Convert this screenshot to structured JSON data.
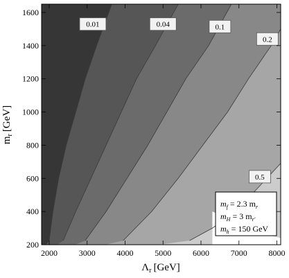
{
  "chart_data": {
    "type": "contour",
    "xlabel_main": "Λ",
    "xlabel_sub": "r",
    "xlabel_unit": "[GeV]",
    "ylabel_main": "m",
    "ylabel_sub": "r",
    "ylabel_unit": "[GeV]",
    "xlim": [
      1800,
      8100
    ],
    "ylim": [
      200,
      1650
    ],
    "xticks": [
      2000,
      3000,
      4000,
      5000,
      6000,
      7000,
      8000
    ],
    "yticks": [
      200,
      400,
      600,
      800,
      1000,
      1200,
      1400,
      1600
    ],
    "fill_colors": [
      "#363636",
      "#565656",
      "#6b6b6b",
      "#888888",
      "#a6a6a6",
      "#cccccc",
      "#ffffff"
    ],
    "contours": [
      {
        "level": "0.01",
        "label_at": [
          3150,
          1530
        ],
        "points": [
          [
            2000,
            225
          ],
          [
            2100,
            400
          ],
          [
            2250,
            600
          ],
          [
            2450,
            800
          ],
          [
            2700,
            1000
          ],
          [
            2950,
            1200
          ],
          [
            3250,
            1400
          ],
          [
            3650,
            1650
          ]
        ]
      },
      {
        "level": "0.04",
        "label_at": [
          5000,
          1530
        ],
        "points": [
          [
            2370,
            225
          ],
          [
            2700,
            400
          ],
          [
            3100,
            600
          ],
          [
            3500,
            800
          ],
          [
            3900,
            1000
          ],
          [
            4300,
            1200
          ],
          [
            4800,
            1400
          ],
          [
            5400,
            1650
          ]
        ]
      },
      {
        "level": "0.1",
        "label_at": [
          6500,
          1515
        ],
        "points": [
          [
            2950,
            225
          ],
          [
            3500,
            400
          ],
          [
            4050,
            600
          ],
          [
            4600,
            800
          ],
          [
            5100,
            1000
          ],
          [
            5600,
            1200
          ],
          [
            6200,
            1400
          ],
          [
            6800,
            1650
          ]
        ]
      },
      {
        "level": "0.2",
        "label_at": [
          7750,
          1440
        ],
        "points": [
          [
            3950,
            225
          ],
          [
            4700,
            400
          ],
          [
            5400,
            600
          ],
          [
            6050,
            800
          ],
          [
            6700,
            1000
          ],
          [
            7250,
            1200
          ],
          [
            7850,
            1400
          ],
          [
            8100,
            1500
          ]
        ]
      },
      {
        "level": "0.5",
        "label_at": [
          7550,
          610
        ],
        "points": [
          [
            5700,
            225
          ],
          [
            6300,
            300
          ],
          [
            6900,
            400
          ],
          [
            7450,
            530
          ],
          [
            8100,
            690
          ]
        ]
      }
    ],
    "white_edge_points": [
      [
        8100,
        240
      ],
      [
        7600,
        270
      ],
      [
        7200,
        320
      ],
      [
        6700,
        360
      ],
      [
        6300,
        400
      ]
    ],
    "legend": [
      "m",
      "f",
      " = 2.3 m",
      "r",
      "m",
      "H",
      " = 3 m",
      "r'",
      "m",
      "h",
      " = 150 GeV"
    ]
  }
}
